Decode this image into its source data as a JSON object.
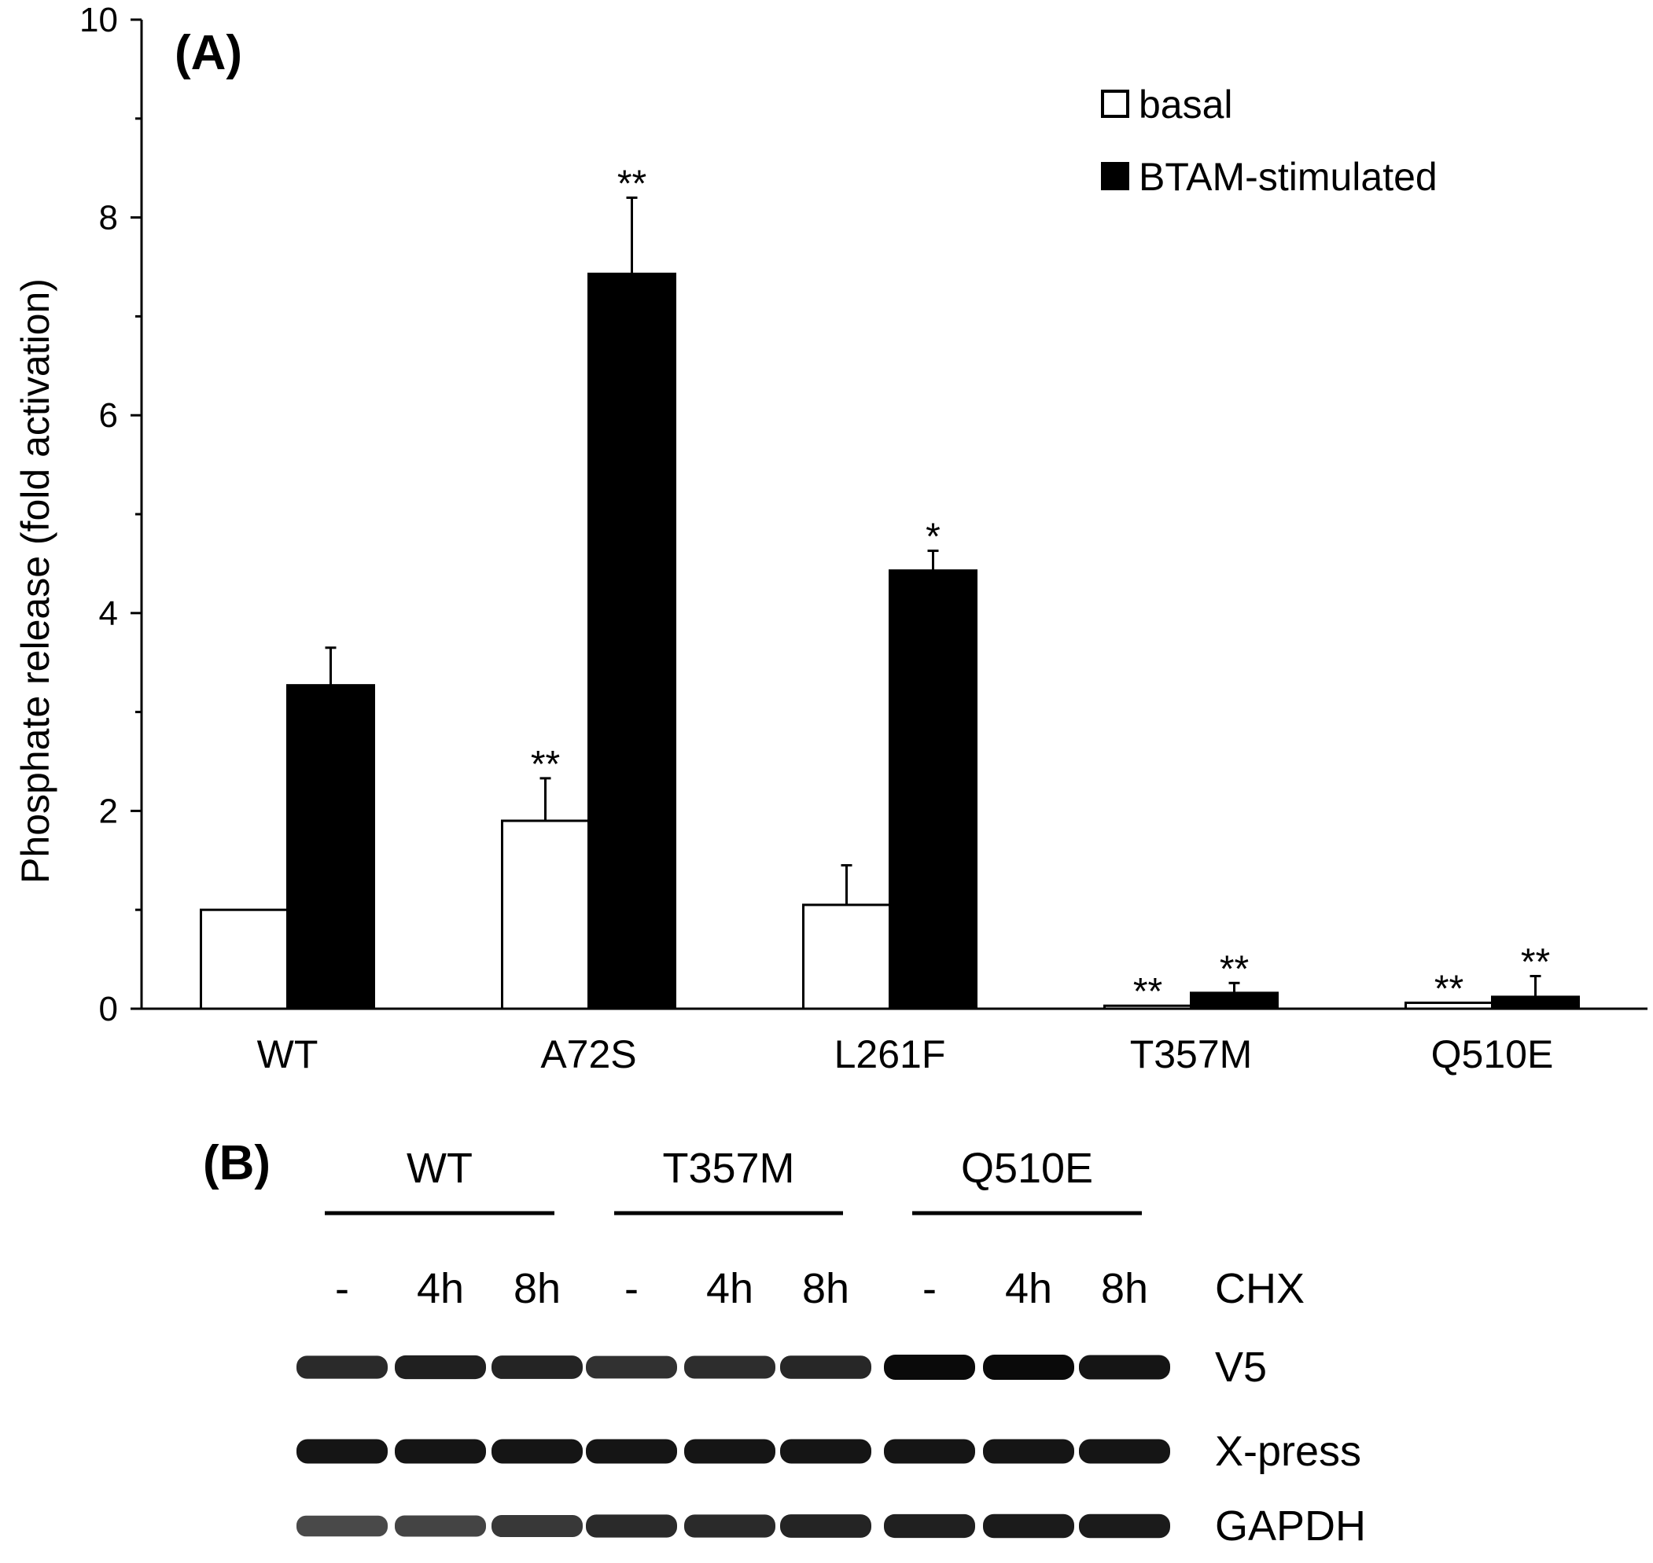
{
  "chart_data": [
    {
      "type": "bar",
      "panel_label": "(A)",
      "title": "",
      "xlabel": "",
      "ylabel": "Phosphate release (fold activation)",
      "ylim": [
        0,
        10
      ],
      "yticks": [
        0,
        2,
        4,
        6,
        8,
        10
      ],
      "grid": false,
      "legend_position": "top-right",
      "categories": [
        "WT",
        "A72S",
        "L261F",
        "T357M",
        "Q510E"
      ],
      "series": [
        {
          "name": "basal",
          "fill": "#ffffff",
          "values": [
            1.0,
            1.9,
            1.05,
            0.03,
            0.06
          ],
          "errors": [
            0.0,
            0.43,
            0.4,
            0.0,
            0.0
          ],
          "annotations": [
            "",
            "**",
            "",
            "**",
            "**"
          ]
        },
        {
          "name": "BTAM-stimulated",
          "fill": "#000000",
          "values": [
            3.27,
            7.43,
            4.43,
            0.16,
            0.12
          ],
          "errors": [
            0.38,
            0.77,
            0.2,
            0.1,
            0.21
          ],
          "annotations": [
            "",
            "**",
            "*",
            "**",
            "**"
          ]
        }
      ]
    },
    {
      "type": "table",
      "panel_label": "(B)",
      "groups": [
        "WT",
        "T357M",
        "Q510E"
      ],
      "lanes": [
        "-",
        "4h",
        "8h",
        "-",
        "4h",
        "8h",
        "-",
        "4h",
        "8h"
      ],
      "treatment_label": "CHX",
      "blots": [
        {
          "name": "V5",
          "intensity": [
            0.85,
            0.9,
            0.88,
            0.82,
            0.84,
            0.86,
            1.0,
            1.0,
            0.95
          ]
        },
        {
          "name": "X-press",
          "intensity": [
            0.95,
            0.95,
            0.95,
            0.95,
            0.95,
            0.95,
            0.95,
            0.95,
            0.95
          ]
        },
        {
          "name": "GAPDH",
          "intensity": [
            0.7,
            0.72,
            0.78,
            0.85,
            0.85,
            0.88,
            0.9,
            0.92,
            0.92
          ]
        }
      ]
    }
  ]
}
